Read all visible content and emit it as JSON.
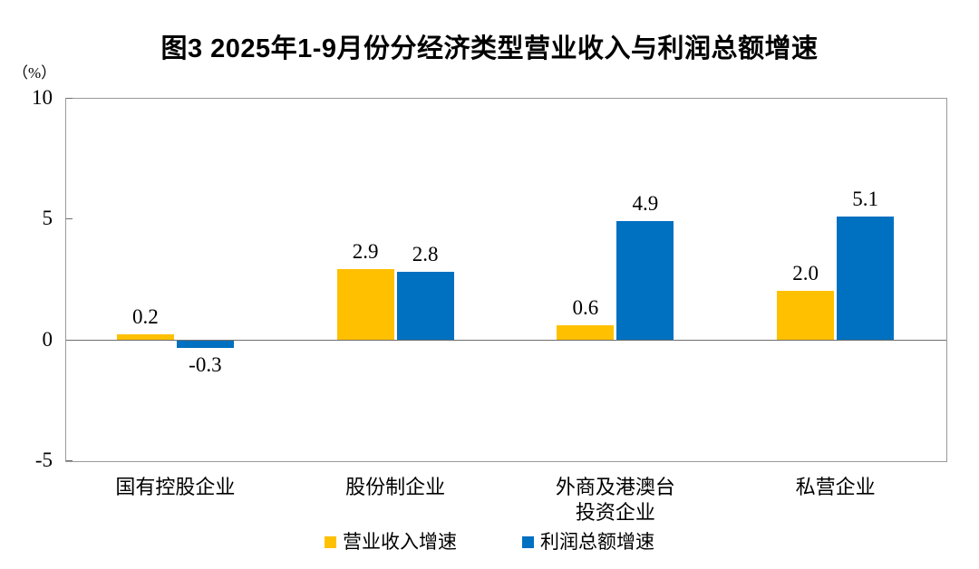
{
  "chart_data": {
    "type": "bar",
    "title": "图3 2025年1-9月份分经济类型营业收入与利润总额增速",
    "unit_label": "（%）",
    "categories": [
      "国有控股企业",
      "股份制企业",
      "外商及港澳台\n投资企业",
      "私营企业"
    ],
    "series": [
      {
        "name": "营业收入增速",
        "color": "#FFC000",
        "values": [
          0.2,
          2.9,
          0.6,
          2.0
        ]
      },
      {
        "name": "利润总额增速",
        "color": "#0070C0",
        "values": [
          -0.3,
          2.8,
          4.9,
          5.1
        ]
      }
    ],
    "data_labels": [
      [
        "0.2",
        "2.9",
        "0.6",
        "2.0"
      ],
      [
        "-0.3",
        "2.8",
        "4.9",
        "5.1"
      ]
    ],
    "ylim": [
      -5,
      10
    ],
    "yticks": [
      10,
      5,
      0,
      -5
    ],
    "grid": false,
    "legend_position": "bottom"
  },
  "colors": {
    "revenue_bar": "#FFC000",
    "profit_bar": "#0070C0",
    "plot_border": "#9a9a9a",
    "zero_line": "#6e6e6e",
    "text": "#000000",
    "background": "#ffffff"
  }
}
